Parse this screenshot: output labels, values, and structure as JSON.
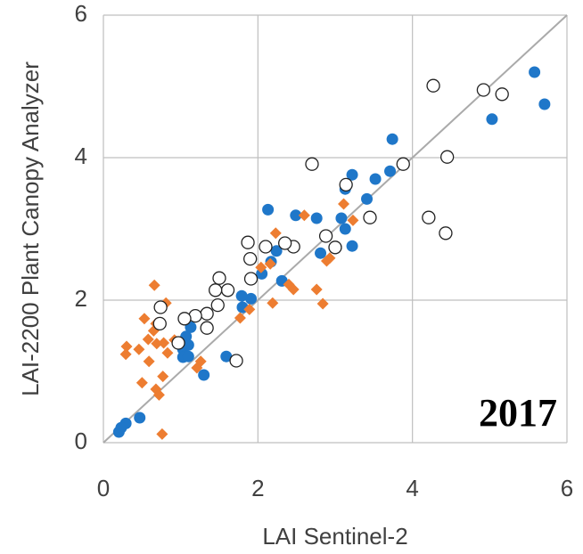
{
  "chart_data": {
    "type": "scatter",
    "xlabel": "LAI Sentinel-2",
    "ylabel": "LAI-2200 Plant Canopy Analyzer",
    "annotation": "2017",
    "xlim": [
      0,
      6
    ],
    "ylim": [
      0,
      6
    ],
    "xticks": [
      0,
      2,
      4,
      6
    ],
    "yticks": [
      0,
      2,
      4,
      6
    ],
    "grid": true,
    "series": [
      {
        "color": "#1f77c9",
        "marker": "circle",
        "x": [
          5.58,
          5.71,
          5.03,
          3.74,
          3.71,
          3.52,
          3.22,
          3.13,
          3.41,
          3.08,
          2.76,
          2.49,
          2.13,
          3.22,
          3.13,
          2.81,
          2.24,
          2.17,
          2.05,
          2.31,
          1.91,
          1.8,
          1.79,
          1.59,
          1.13,
          1.07,
          1.03,
          1.1,
          1.03,
          1.1,
          1.3,
          0.47,
          0.29,
          0.2,
          0.23
        ],
        "values": [
          5.2,
          4.75,
          4.54,
          4.26,
          3.81,
          3.7,
          3.76,
          3.56,
          3.42,
          3.15,
          3.15,
          3.19,
          3.27,
          2.76,
          3.0,
          2.66,
          2.69,
          2.54,
          2.37,
          2.27,
          2.02,
          1.9,
          2.06,
          1.21,
          1.62,
          1.49,
          1.31,
          1.37,
          1.2,
          1.21,
          0.95,
          0.35,
          0.27,
          0.15,
          0.21
        ]
      },
      {
        "color": "#ed7d31",
        "marker": "diamond",
        "x": [
          3.11,
          3.23,
          2.6,
          2.23,
          2.04,
          2.16,
          2.4,
          2.46,
          2.19,
          2.76,
          2.84,
          2.93,
          2.89,
          1.89,
          1.77,
          0.66,
          0.81,
          0.53,
          0.68,
          0.65,
          0.58,
          0.46,
          0.3,
          0.29,
          0.78,
          0.83,
          0.92,
          0.69,
          0.59,
          1.21,
          1.26,
          0.5,
          0.77,
          0.68,
          0.72,
          0.76
        ],
        "values": [
          3.35,
          3.12,
          3.19,
          2.94,
          2.46,
          2.51,
          2.22,
          2.15,
          1.96,
          2.15,
          1.95,
          2.59,
          2.55,
          1.87,
          1.75,
          2.21,
          1.96,
          1.74,
          1.67,
          1.57,
          1.45,
          1.31,
          1.35,
          1.24,
          1.4,
          1.26,
          1.44,
          1.39,
          1.14,
          1.05,
          1.14,
          0.84,
          0.93,
          0.75,
          0.67,
          0.12
        ]
      },
      {
        "color": "#222222",
        "marker": "open-circle",
        "x": [
          4.27,
          4.92,
          5.16,
          4.45,
          3.88,
          2.7,
          3.14,
          3.45,
          4.21,
          4.43,
          3.0,
          2.88,
          2.46,
          2.35,
          2.1,
          1.87,
          1.9,
          1.91,
          1.5,
          1.61,
          1.45,
          1.48,
          1.34,
          1.19,
          1.05,
          0.74,
          0.73,
          1.34,
          1.72,
          0.97
        ],
        "values": [
          5.01,
          4.95,
          4.89,
          4.01,
          3.91,
          3.91,
          3.62,
          3.16,
          3.16,
          2.94,
          2.74,
          2.9,
          2.75,
          2.8,
          2.75,
          2.81,
          2.58,
          2.3,
          2.31,
          2.14,
          2.14,
          1.93,
          1.81,
          1.78,
          1.74,
          1.9,
          1.67,
          1.61,
          1.15,
          1.4
        ]
      }
    ]
  }
}
